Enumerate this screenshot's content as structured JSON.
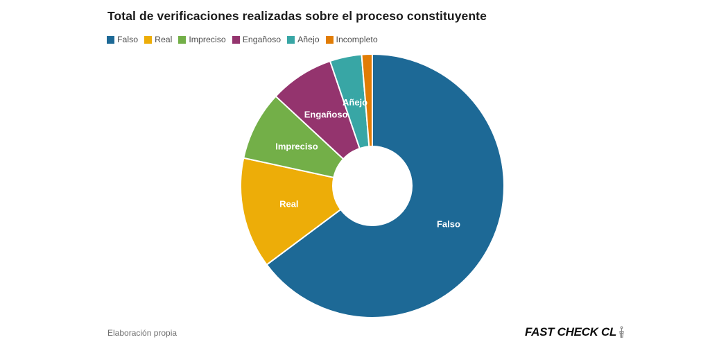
{
  "title": "Total de verificaciones realizadas sobre el proceso constituyente",
  "legend": {
    "items": [
      {
        "label": "Falso",
        "color": "#1D6996"
      },
      {
        "label": "Real",
        "color": "#EDAD08"
      },
      {
        "label": "Impreciso",
        "color": "#73AF48"
      },
      {
        "label": "Engañoso",
        "color": "#94346E"
      },
      {
        "label": "Añejo",
        "color": "#38A6A5"
      },
      {
        "label": "Incompleto",
        "color": "#E17C05"
      }
    ]
  },
  "footer": {
    "source": "Elaboración propia",
    "brand": "FAST CHECK CL"
  },
  "chart_data": {
    "type": "pie",
    "subtype": "donut",
    "title": "Total de verificaciones realizadas sobre el proceso constituyente",
    "categories": [
      "Falso",
      "Real",
      "Impreciso",
      "Engañoso",
      "Añejo",
      "Incompleto"
    ],
    "values": [
      64.8,
      13.6,
      8.5,
      7.9,
      3.9,
      1.3
    ],
    "values_unit": "percent (estimated from slice angles, no numeric labels shown)",
    "angles_deg": [
      233.3,
      49.0,
      30.6,
      28.4,
      14.0,
      4.7
    ],
    "colors": [
      "#1D6996",
      "#EDAD08",
      "#73AF48",
      "#94346E",
      "#38A6A5",
      "#E17C05"
    ],
    "slice_labels_shown": [
      "Falso",
      "Real",
      "Impreciso",
      "Engañoso",
      "Añejo"
    ],
    "legend_position": "top-left",
    "start_angle_deg": 0,
    "direction": "clockwise",
    "inner_radius_ratio": 0.3,
    "grid": false
  }
}
